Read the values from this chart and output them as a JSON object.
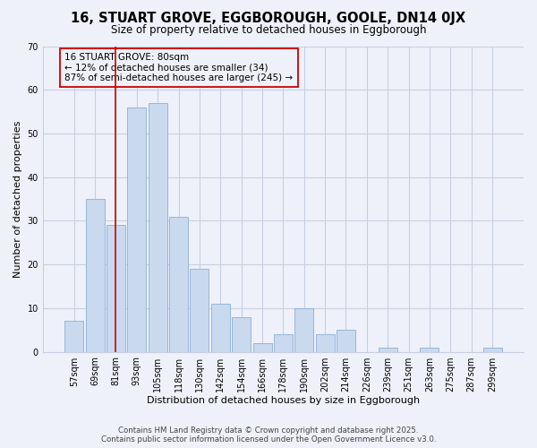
{
  "title": "16, STUART GROVE, EGGBOROUGH, GOOLE, DN14 0JX",
  "subtitle": "Size of property relative to detached houses in Eggborough",
  "xlabel": "Distribution of detached houses by size in Eggborough",
  "ylabel": "Number of detached properties",
  "bar_labels": [
    "57sqm",
    "69sqm",
    "81sqm",
    "93sqm",
    "105sqm",
    "118sqm",
    "130sqm",
    "142sqm",
    "154sqm",
    "166sqm",
    "178sqm",
    "190sqm",
    "202sqm",
    "214sqm",
    "226sqm",
    "239sqm",
    "251sqm",
    "263sqm",
    "275sqm",
    "287sqm",
    "299sqm"
  ],
  "bar_values": [
    7,
    35,
    29,
    56,
    57,
    31,
    19,
    11,
    8,
    2,
    4,
    10,
    4,
    5,
    0,
    1,
    0,
    1,
    0,
    0,
    1
  ],
  "bar_color": "#c9d9ee",
  "bar_edge_color": "#8bafd6",
  "ylim": [
    0,
    70
  ],
  "yticks": [
    0,
    10,
    20,
    30,
    40,
    50,
    60,
    70
  ],
  "annotation_line_x_label": "81sqm",
  "annotation_line_color": "#cc0000",
  "annotation_box_text_line1": "16 STUART GROVE: 80sqm",
  "annotation_box_text_line2": "← 12% of detached houses are smaller (34)",
  "annotation_box_text_line3": "87% of semi-detached houses are larger (245) →",
  "footer_line1": "Contains HM Land Registry data © Crown copyright and database right 2025.",
  "footer_line2": "Contains public sector information licensed under the Open Government Licence v3.0.",
  "background_color": "#eef1f9",
  "grid_color": "#c8cfe0",
  "title_fontsize": 10.5,
  "subtitle_fontsize": 8.5,
  "axis_label_fontsize": 8,
  "tick_fontsize": 7,
  "annotation_fontsize": 7.5,
  "footer_fontsize": 6.2
}
